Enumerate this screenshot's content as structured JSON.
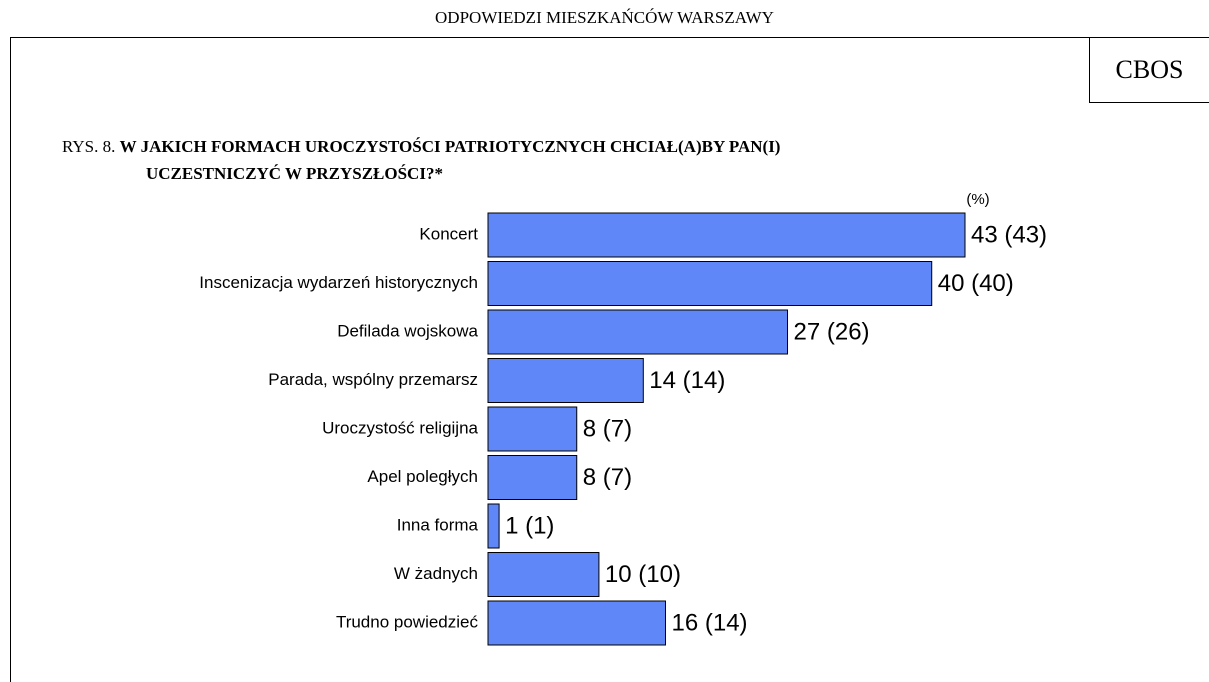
{
  "header": "ODPOWIEDZI MIESZKAŃCÓW WARSZAWY",
  "badge": "CBOS",
  "chart_data": {
    "type": "hbar",
    "figure_label": "RYS. 8.",
    "title": [
      "W JAKICH FORMACH UROCZYSTOŚCI PATRIOTYCZNYCH CHCIAŁ(A)BY PAN(I)",
      "UCZESTNICZYĆ W PRZYSZŁOŚCI?*"
    ],
    "unit_label": "(%)",
    "categories": [
      "Koncert",
      "Inscenizacja wydarzeń historycznych",
      "Defilada wojskowa",
      "Parada, wspólny przemarsz",
      "Uroczystość religijna",
      "Apel poległych",
      "Inna forma",
      "W żadnych",
      "Trudno powiedzieć"
    ],
    "values": [
      43,
      40,
      27,
      14,
      8,
      8,
      1,
      10,
      16
    ],
    "value_labels": [
      "43 (43)",
      "40 (40)",
      "27 (26)",
      "14 (14)",
      "8 (7)",
      "8 (7)",
      "1 (1)",
      "10 (10)",
      "16 (14)"
    ],
    "color": "#5f87f7"
  }
}
